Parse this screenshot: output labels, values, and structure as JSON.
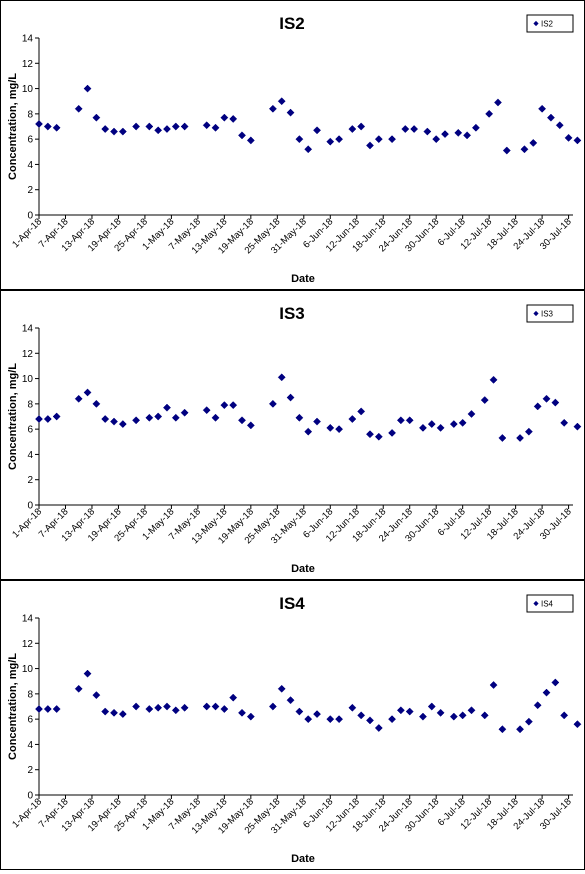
{
  "colors": {
    "marker": "#000080",
    "axis": "#000000",
    "background": "#ffffff"
  },
  "chart_data": [
    {
      "type": "scatter",
      "title": "IS2",
      "xlabel": "Date",
      "ylabel": "Concentration, mg/L",
      "ylim": [
        0,
        14
      ],
      "yticks": [
        0,
        2,
        4,
        6,
        8,
        10,
        12,
        14
      ],
      "xlim": [
        "2018-04-01",
        "2018-07-31"
      ],
      "xtick_labels": [
        "1-Apr-18",
        "7-Apr-18",
        "13-Apr-18",
        "19-Apr-18",
        "25-Apr-18",
        "1-May-18",
        "7-May-18",
        "13-May-18",
        "19-May-18",
        "25-May-18",
        "31-May-18",
        "6-Jun-18",
        "12-Jun-18",
        "18-Jun-18",
        "24-Jun-18",
        "30-Jun-18",
        "6-Jul-18",
        "12-Jul-18",
        "18-Jul-18",
        "24-Jul-18",
        "30-Jul-18"
      ],
      "grid": false,
      "legend_position": "top-right",
      "series": [
        {
          "name": "IS2",
          "marker": "diamond",
          "points": [
            [
              "2018-04-01",
              7.2
            ],
            [
              "2018-04-03",
              7.0
            ],
            [
              "2018-04-05",
              6.9
            ],
            [
              "2018-04-10",
              8.4
            ],
            [
              "2018-04-12",
              10.0
            ],
            [
              "2018-04-14",
              7.7
            ],
            [
              "2018-04-16",
              6.8
            ],
            [
              "2018-04-18",
              6.6
            ],
            [
              "2018-04-20",
              6.6
            ],
            [
              "2018-04-23",
              7.0
            ],
            [
              "2018-04-26",
              7.0
            ],
            [
              "2018-04-28",
              6.7
            ],
            [
              "2018-04-30",
              6.8
            ],
            [
              "2018-05-02",
              7.0
            ],
            [
              "2018-05-04",
              7.0
            ],
            [
              "2018-05-09",
              7.1
            ],
            [
              "2018-05-11",
              6.9
            ],
            [
              "2018-05-13",
              7.7
            ],
            [
              "2018-05-15",
              7.6
            ],
            [
              "2018-05-17",
              6.3
            ],
            [
              "2018-05-19",
              5.9
            ],
            [
              "2018-05-24",
              8.4
            ],
            [
              "2018-05-26",
              9.0
            ],
            [
              "2018-05-28",
              8.1
            ],
            [
              "2018-05-30",
              6.0
            ],
            [
              "2018-06-01",
              5.2
            ],
            [
              "2018-06-03",
              6.7
            ],
            [
              "2018-06-06",
              5.8
            ],
            [
              "2018-06-08",
              6.0
            ],
            [
              "2018-06-11",
              6.8
            ],
            [
              "2018-06-13",
              7.0
            ],
            [
              "2018-06-15",
              5.5
            ],
            [
              "2018-06-17",
              6.0
            ],
            [
              "2018-06-20",
              6.0
            ],
            [
              "2018-06-23",
              6.8
            ],
            [
              "2018-06-25",
              6.8
            ],
            [
              "2018-06-28",
              6.6
            ],
            [
              "2018-06-30",
              6.0
            ],
            [
              "2018-07-02",
              6.4
            ],
            [
              "2018-07-05",
              6.5
            ],
            [
              "2018-07-07",
              6.3
            ],
            [
              "2018-07-09",
              6.9
            ],
            [
              "2018-07-12",
              8.0
            ],
            [
              "2018-07-14",
              8.9
            ],
            [
              "2018-07-16",
              5.1
            ],
            [
              "2018-07-20",
              5.2
            ],
            [
              "2018-07-22",
              5.7
            ],
            [
              "2018-07-24",
              8.4
            ],
            [
              "2018-07-26",
              7.7
            ],
            [
              "2018-07-28",
              7.1
            ],
            [
              "2018-07-30",
              6.1
            ],
            [
              "2018-08-01",
              5.9
            ]
          ]
        }
      ]
    },
    {
      "type": "scatter",
      "title": "IS3",
      "xlabel": "Date",
      "ylabel": "Concentration, mg/L",
      "ylim": [
        0,
        14
      ],
      "yticks": [
        0,
        2,
        4,
        6,
        8,
        10,
        12,
        14
      ],
      "xlim": [
        "2018-04-01",
        "2018-07-31"
      ],
      "xtick_labels": [
        "1-Apr-18",
        "7-Apr-18",
        "13-Apr-18",
        "19-Apr-18",
        "25-Apr-18",
        "1-May-18",
        "7-May-18",
        "13-May-18",
        "19-May-18",
        "25-May-18",
        "31-May-18",
        "6-Jun-18",
        "12-Jun-18",
        "18-Jun-18",
        "24-Jun-18",
        "30-Jun-18",
        "6-Jul-18",
        "12-Jul-18",
        "18-Jul-18",
        "24-Jul-18",
        "30-Jul-18"
      ],
      "grid": false,
      "legend_position": "top-right",
      "series": [
        {
          "name": "IS3",
          "marker": "diamond",
          "points": [
            [
              "2018-04-01",
              6.8
            ],
            [
              "2018-04-03",
              6.8
            ],
            [
              "2018-04-05",
              7.0
            ],
            [
              "2018-04-10",
              8.4
            ],
            [
              "2018-04-12",
              8.9
            ],
            [
              "2018-04-14",
              8.0
            ],
            [
              "2018-04-16",
              6.8
            ],
            [
              "2018-04-18",
              6.6
            ],
            [
              "2018-04-20",
              6.4
            ],
            [
              "2018-04-23",
              6.7
            ],
            [
              "2018-04-26",
              6.9
            ],
            [
              "2018-04-28",
              7.0
            ],
            [
              "2018-04-30",
              7.7
            ],
            [
              "2018-05-02",
              6.9
            ],
            [
              "2018-05-04",
              7.3
            ],
            [
              "2018-05-09",
              7.5
            ],
            [
              "2018-05-11",
              6.9
            ],
            [
              "2018-05-13",
              7.9
            ],
            [
              "2018-05-15",
              7.9
            ],
            [
              "2018-05-17",
              6.7
            ],
            [
              "2018-05-19",
              6.3
            ],
            [
              "2018-05-24",
              8.0
            ],
            [
              "2018-05-26",
              10.1
            ],
            [
              "2018-05-28",
              8.5
            ],
            [
              "2018-05-30",
              6.9
            ],
            [
              "2018-06-01",
              5.8
            ],
            [
              "2018-06-03",
              6.6
            ],
            [
              "2018-06-06",
              6.1
            ],
            [
              "2018-06-08",
              6.0
            ],
            [
              "2018-06-11",
              6.8
            ],
            [
              "2018-06-13",
              7.4
            ],
            [
              "2018-06-15",
              5.6
            ],
            [
              "2018-06-17",
              5.4
            ],
            [
              "2018-06-20",
              5.7
            ],
            [
              "2018-06-22",
              6.7
            ],
            [
              "2018-06-24",
              6.7
            ],
            [
              "2018-06-27",
              6.1
            ],
            [
              "2018-06-29",
              6.4
            ],
            [
              "2018-07-01",
              6.1
            ],
            [
              "2018-07-04",
              6.4
            ],
            [
              "2018-07-06",
              6.5
            ],
            [
              "2018-07-08",
              7.2
            ],
            [
              "2018-07-11",
              8.3
            ],
            [
              "2018-07-13",
              9.9
            ],
            [
              "2018-07-15",
              5.3
            ],
            [
              "2018-07-19",
              5.3
            ],
            [
              "2018-07-21",
              5.8
            ],
            [
              "2018-07-23",
              7.8
            ],
            [
              "2018-07-25",
              8.4
            ],
            [
              "2018-07-27",
              8.1
            ],
            [
              "2018-07-29",
              6.5
            ],
            [
              "2018-08-01",
              6.2
            ]
          ]
        }
      ]
    },
    {
      "type": "scatter",
      "title": "IS4",
      "xlabel": "Date",
      "ylabel": "Concentration, mg/L",
      "ylim": [
        0,
        14
      ],
      "yticks": [
        0,
        2,
        4,
        6,
        8,
        10,
        12,
        14
      ],
      "xlim": [
        "2018-04-01",
        "2018-07-31"
      ],
      "xtick_labels": [
        "1-Apr-18",
        "7-Apr-18",
        "13-Apr-18",
        "19-Apr-18",
        "25-Apr-18",
        "1-May-18",
        "7-May-18",
        "13-May-18",
        "19-May-18",
        "25-May-18",
        "31-May-18",
        "6-Jun-18",
        "12-Jun-18",
        "18-Jun-18",
        "24-Jun-18",
        "30-Jun-18",
        "6-Jul-18",
        "12-Jul-18",
        "18-Jul-18",
        "24-Jul-18",
        "30-Jul-18"
      ],
      "grid": false,
      "legend_position": "top-right",
      "series": [
        {
          "name": "IS4",
          "marker": "diamond",
          "points": [
            [
              "2018-04-01",
              6.8
            ],
            [
              "2018-04-03",
              6.8
            ],
            [
              "2018-04-05",
              6.8
            ],
            [
              "2018-04-10",
              8.4
            ],
            [
              "2018-04-12",
              9.6
            ],
            [
              "2018-04-14",
              7.9
            ],
            [
              "2018-04-16",
              6.6
            ],
            [
              "2018-04-18",
              6.5
            ],
            [
              "2018-04-20",
              6.4
            ],
            [
              "2018-04-23",
              7.0
            ],
            [
              "2018-04-26",
              6.8
            ],
            [
              "2018-04-28",
              6.9
            ],
            [
              "2018-04-30",
              7.0
            ],
            [
              "2018-05-02",
              6.7
            ],
            [
              "2018-05-04",
              6.9
            ],
            [
              "2018-05-09",
              7.0
            ],
            [
              "2018-05-11",
              7.0
            ],
            [
              "2018-05-13",
              6.8
            ],
            [
              "2018-05-15",
              7.7
            ],
            [
              "2018-05-17",
              6.5
            ],
            [
              "2018-05-19",
              6.2
            ],
            [
              "2018-05-24",
              7.0
            ],
            [
              "2018-05-26",
              8.4
            ],
            [
              "2018-05-28",
              7.5
            ],
            [
              "2018-05-30",
              6.6
            ],
            [
              "2018-06-01",
              6.0
            ],
            [
              "2018-06-03",
              6.4
            ],
            [
              "2018-06-06",
              6.0
            ],
            [
              "2018-06-08",
              6.0
            ],
            [
              "2018-06-11",
              6.9
            ],
            [
              "2018-06-13",
              6.3
            ],
            [
              "2018-06-15",
              5.9
            ],
            [
              "2018-06-17",
              5.3
            ],
            [
              "2018-06-20",
              6.0
            ],
            [
              "2018-06-22",
              6.7
            ],
            [
              "2018-06-24",
              6.6
            ],
            [
              "2018-06-27",
              6.2
            ],
            [
              "2018-06-29",
              7.0
            ],
            [
              "2018-07-01",
              6.5
            ],
            [
              "2018-07-04",
              6.2
            ],
            [
              "2018-07-06",
              6.3
            ],
            [
              "2018-07-08",
              6.7
            ],
            [
              "2018-07-11",
              6.3
            ],
            [
              "2018-07-13",
              8.7
            ],
            [
              "2018-07-15",
              5.2
            ],
            [
              "2018-07-19",
              5.2
            ],
            [
              "2018-07-21",
              5.8
            ],
            [
              "2018-07-23",
              7.1
            ],
            [
              "2018-07-25",
              8.1
            ],
            [
              "2018-07-27",
              8.9
            ],
            [
              "2018-07-29",
              6.3
            ],
            [
              "2018-08-01",
              5.6
            ]
          ]
        }
      ]
    }
  ]
}
